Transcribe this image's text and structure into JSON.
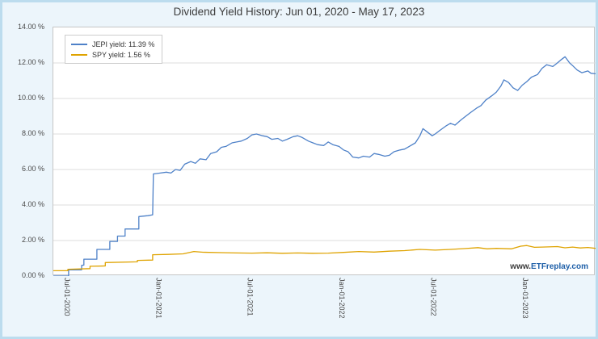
{
  "page": {
    "title": "Dividend Yield History: Jun 01, 2020 - May 17, 2023",
    "watermark_prefix": "www.",
    "watermark_brand": "ETFreplay.com"
  },
  "legend": [
    {
      "label": "JEPI yield: 11.39 %"
    },
    {
      "label": "SPY yield: 1.56 %"
    }
  ],
  "chart_data": {
    "type": "line",
    "title": "Dividend Yield History: Jun 01, 2020 - May 17, 2023",
    "grid": "horizontal",
    "legend_position": "top-left",
    "x_axis": {
      "unit": "months since Jun-01-2020",
      "min": 0,
      "max": 35.5,
      "ticks": [
        {
          "value": 1,
          "label": "Jul-01-2020"
        },
        {
          "value": 7,
          "label": "Jan-01-2021"
        },
        {
          "value": 13,
          "label": "Jul-01-2021"
        },
        {
          "value": 19,
          "label": "Jan-01-2022"
        },
        {
          "value": 25,
          "label": "Jul-01-2022"
        },
        {
          "value": 31,
          "label": "Jan-01-2023"
        }
      ]
    },
    "y_axis": {
      "unit": "percent",
      "min": 0,
      "max": 14,
      "ticks": [
        {
          "value": 0,
          "label": "0.00 %"
        },
        {
          "value": 2,
          "label": "2.00 %"
        },
        {
          "value": 4,
          "label": "4.00 %"
        },
        {
          "value": 6,
          "label": "6.00 %"
        },
        {
          "value": 8,
          "label": "8.00 %"
        },
        {
          "value": 10,
          "label": "10.00 %"
        },
        {
          "value": 12,
          "label": "12.00 %"
        },
        {
          "value": 14,
          "label": "14.00 %"
        }
      ]
    },
    "series": [
      {
        "name": "JEPI yield",
        "current_value": "11.39 %",
        "color": "#4e81c8",
        "points": [
          [
            0,
            0
          ],
          [
            1.0,
            0
          ],
          [
            1.0,
            0.35
          ],
          [
            1.85,
            0.35
          ],
          [
            1.85,
            0.6
          ],
          [
            2.0,
            0.62
          ],
          [
            2.0,
            0.95
          ],
          [
            2.85,
            0.95
          ],
          [
            2.85,
            1.5
          ],
          [
            3.7,
            1.5
          ],
          [
            3.7,
            1.95
          ],
          [
            4.2,
            1.95
          ],
          [
            4.2,
            2.25
          ],
          [
            4.7,
            2.25
          ],
          [
            4.7,
            2.65
          ],
          [
            5.6,
            2.65
          ],
          [
            5.6,
            3.35
          ],
          [
            6.2,
            3.4
          ],
          [
            6.5,
            3.45
          ],
          [
            6.55,
            5.75
          ],
          [
            7.0,
            5.8
          ],
          [
            7.4,
            5.85
          ],
          [
            7.7,
            5.8
          ],
          [
            8.0,
            6.0
          ],
          [
            8.3,
            5.95
          ],
          [
            8.6,
            6.3
          ],
          [
            9.0,
            6.45
          ],
          [
            9.3,
            6.35
          ],
          [
            9.6,
            6.6
          ],
          [
            10.0,
            6.55
          ],
          [
            10.3,
            6.9
          ],
          [
            10.7,
            7.0
          ],
          [
            11.0,
            7.25
          ],
          [
            11.3,
            7.3
          ],
          [
            11.7,
            7.5
          ],
          [
            12.0,
            7.55
          ],
          [
            12.3,
            7.6
          ],
          [
            12.7,
            7.75
          ],
          [
            13.0,
            7.95
          ],
          [
            13.3,
            8.0
          ],
          [
            13.7,
            7.9
          ],
          [
            14.0,
            7.85
          ],
          [
            14.3,
            7.7
          ],
          [
            14.7,
            7.75
          ],
          [
            15.0,
            7.6
          ],
          [
            15.3,
            7.7
          ],
          [
            15.7,
            7.85
          ],
          [
            16.0,
            7.9
          ],
          [
            16.3,
            7.8
          ],
          [
            16.7,
            7.6
          ],
          [
            17.0,
            7.5
          ],
          [
            17.3,
            7.4
          ],
          [
            17.7,
            7.35
          ],
          [
            18.0,
            7.55
          ],
          [
            18.3,
            7.4
          ],
          [
            18.7,
            7.3
          ],
          [
            19.0,
            7.1
          ],
          [
            19.3,
            7.0
          ],
          [
            19.6,
            6.7
          ],
          [
            20.0,
            6.65
          ],
          [
            20.3,
            6.75
          ],
          [
            20.7,
            6.7
          ],
          [
            21.0,
            6.9
          ],
          [
            21.3,
            6.85
          ],
          [
            21.7,
            6.75
          ],
          [
            22.0,
            6.8
          ],
          [
            22.3,
            7.0
          ],
          [
            22.7,
            7.1
          ],
          [
            23.0,
            7.15
          ],
          [
            23.3,
            7.3
          ],
          [
            23.7,
            7.5
          ],
          [
            24.0,
            7.9
          ],
          [
            24.2,
            8.3
          ],
          [
            24.5,
            8.1
          ],
          [
            24.8,
            7.9
          ],
          [
            25.0,
            8.0
          ],
          [
            25.3,
            8.2
          ],
          [
            25.7,
            8.45
          ],
          [
            26.0,
            8.6
          ],
          [
            26.3,
            8.5
          ],
          [
            26.7,
            8.8
          ],
          [
            27.0,
            9.0
          ],
          [
            27.3,
            9.2
          ],
          [
            27.7,
            9.45
          ],
          [
            28.0,
            9.6
          ],
          [
            28.3,
            9.9
          ],
          [
            28.7,
            10.15
          ],
          [
            29.0,
            10.35
          ],
          [
            29.3,
            10.7
          ],
          [
            29.5,
            11.05
          ],
          [
            29.8,
            10.9
          ],
          [
            30.1,
            10.6
          ],
          [
            30.4,
            10.45
          ],
          [
            30.7,
            10.75
          ],
          [
            31.0,
            10.95
          ],
          [
            31.3,
            11.2
          ],
          [
            31.7,
            11.35
          ],
          [
            32.0,
            11.7
          ],
          [
            32.3,
            11.9
          ],
          [
            32.7,
            11.8
          ],
          [
            33.0,
            12.0
          ],
          [
            33.2,
            12.15
          ],
          [
            33.5,
            12.35
          ],
          [
            33.8,
            12.0
          ],
          [
            34.0,
            11.85
          ],
          [
            34.3,
            11.6
          ],
          [
            34.6,
            11.45
          ],
          [
            35.0,
            11.55
          ],
          [
            35.2,
            11.42
          ],
          [
            35.5,
            11.39
          ]
        ]
      },
      {
        "name": "SPY yield",
        "current_value": "1.56 %",
        "color": "#dfa300",
        "points": [
          [
            0,
            0.3
          ],
          [
            0.95,
            0.3
          ],
          [
            0.95,
            0.38
          ],
          [
            2.4,
            0.42
          ],
          [
            2.4,
            0.55
          ],
          [
            3.4,
            0.57
          ],
          [
            3.4,
            0.76
          ],
          [
            5.5,
            0.8
          ],
          [
            5.5,
            0.88
          ],
          [
            6.5,
            0.9
          ],
          [
            6.5,
            1.2
          ],
          [
            7.5,
            1.22
          ],
          [
            8.5,
            1.25
          ],
          [
            9.2,
            1.38
          ],
          [
            9.8,
            1.34
          ],
          [
            11.0,
            1.32
          ],
          [
            12.0,
            1.3
          ],
          [
            13.0,
            1.29
          ],
          [
            14.0,
            1.31
          ],
          [
            15.0,
            1.28
          ],
          [
            16.0,
            1.3
          ],
          [
            17.0,
            1.28
          ],
          [
            18.0,
            1.29
          ],
          [
            19.0,
            1.33
          ],
          [
            20.0,
            1.38
          ],
          [
            21.0,
            1.35
          ],
          [
            22.0,
            1.4
          ],
          [
            23.0,
            1.43
          ],
          [
            24.0,
            1.5
          ],
          [
            25.0,
            1.46
          ],
          [
            26.0,
            1.5
          ],
          [
            27.0,
            1.55
          ],
          [
            27.8,
            1.6
          ],
          [
            28.4,
            1.53
          ],
          [
            29.0,
            1.56
          ],
          [
            30.0,
            1.53
          ],
          [
            30.6,
            1.68
          ],
          [
            31.0,
            1.72
          ],
          [
            31.5,
            1.62
          ],
          [
            32.0,
            1.63
          ],
          [
            33.0,
            1.66
          ],
          [
            33.5,
            1.59
          ],
          [
            34.0,
            1.63
          ],
          [
            34.5,
            1.58
          ],
          [
            35.0,
            1.61
          ],
          [
            35.5,
            1.56
          ]
        ]
      }
    ]
  }
}
